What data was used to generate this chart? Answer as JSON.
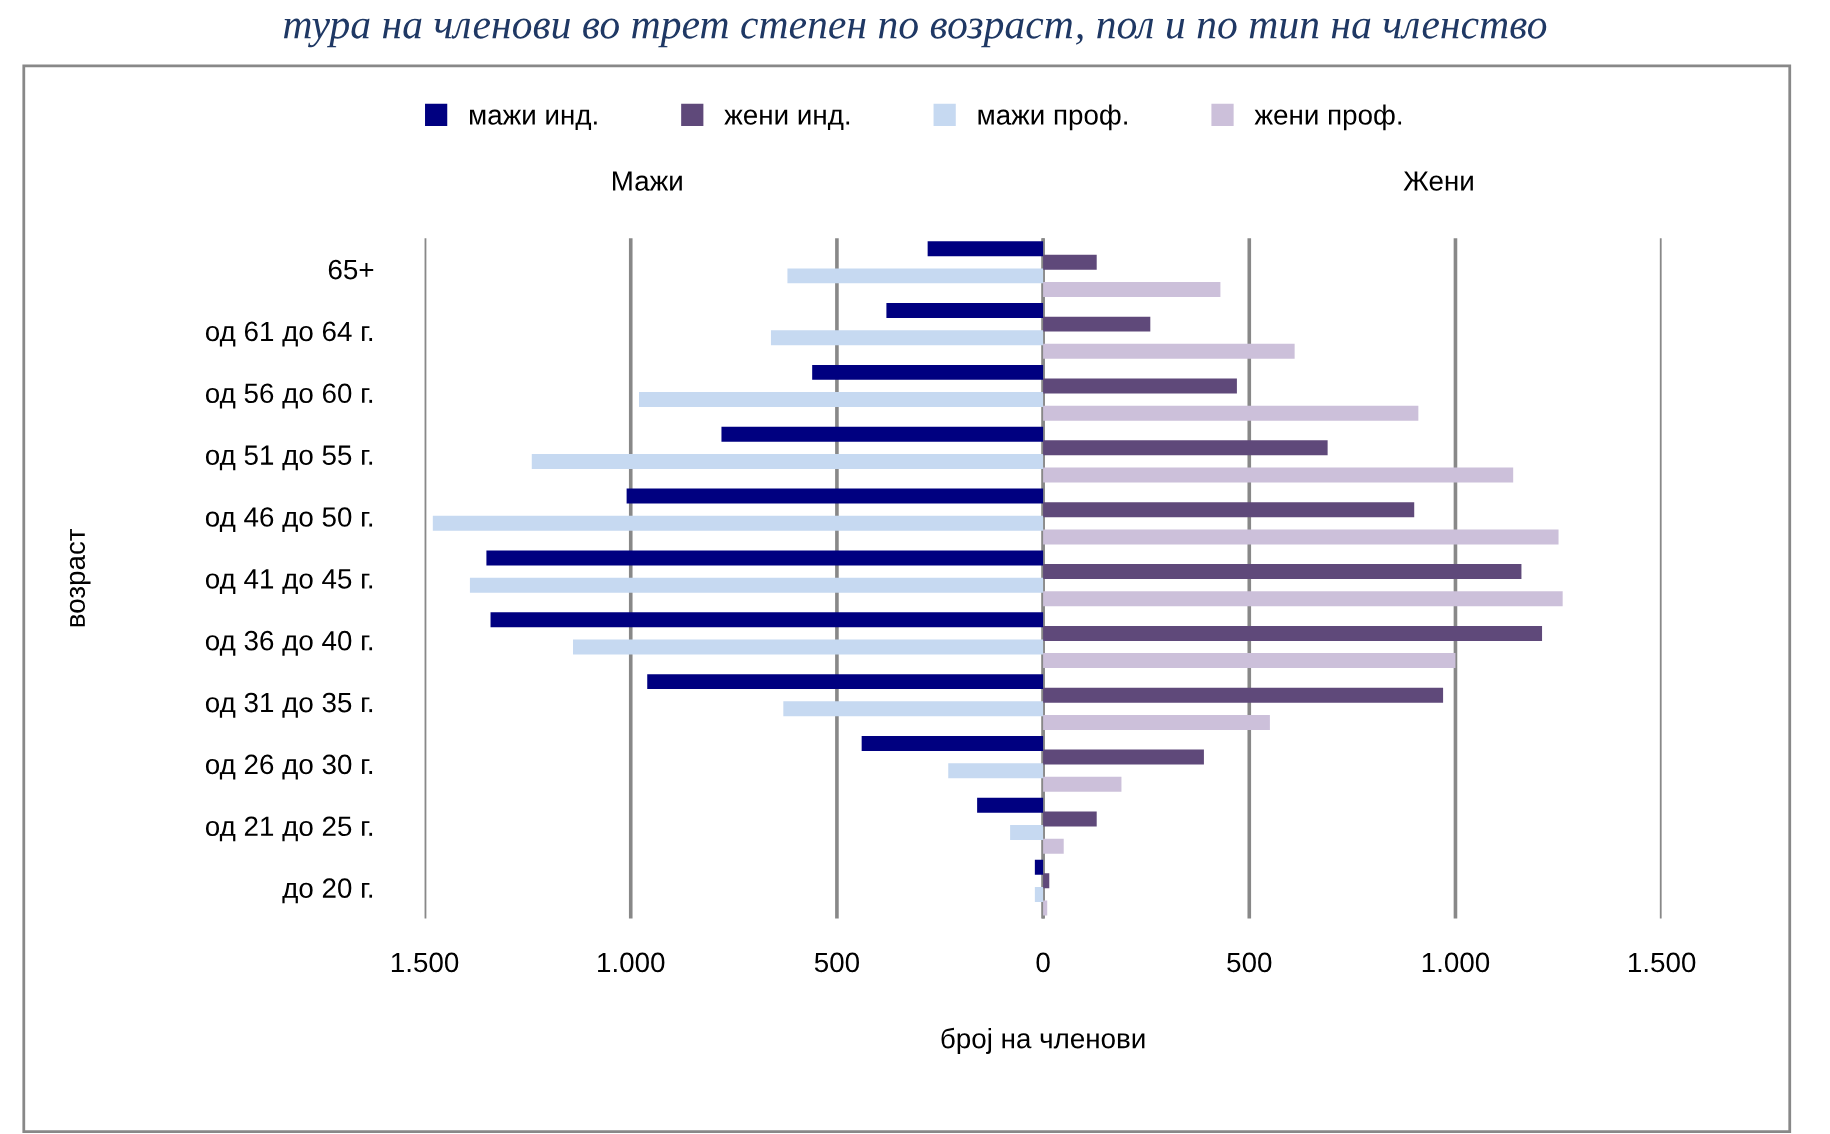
{
  "chart_data": {
    "type": "bar",
    "orientation": "horizontal",
    "title": "тура на членови во трет степен по возраст, пол и по тип на членство",
    "xlabel": "број на членови",
    "ylabel": "возраст",
    "annotations": [
      "Мажи",
      "Жени"
    ],
    "categories": [
      "65+",
      "од 61 до 64 г.",
      "од 56 до 60 г.",
      "од 51 до 55 г.",
      "од 46 до 50 г.",
      "од 41 до 45 г.",
      "од 36 до 40 г.",
      "од 31 до 35 г.",
      "од 26 до 30 г.",
      "од 21 до 25 г.",
      "до 20 г."
    ],
    "series": [
      {
        "name": "мажи инд.",
        "color": "#000080",
        "values": [
          -280,
          -380,
          -560,
          -780,
          -1010,
          -1350,
          -1340,
          -960,
          -440,
          -160,
          -20
        ]
      },
      {
        "name": "жени инд.",
        "color": "#5f497a",
        "values": [
          130,
          260,
          470,
          690,
          900,
          1160,
          1210,
          970,
          390,
          130,
          15
        ]
      },
      {
        "name": "мажи проф.",
        "color": "#c6d9f1",
        "values": [
          -620,
          -660,
          -980,
          -1240,
          -1480,
          -1390,
          -1140,
          -630,
          -230,
          -80,
          -20
        ]
      },
      {
        "name": "жени проф.",
        "color": "#ccc0da",
        "values": [
          430,
          610,
          910,
          1140,
          1250,
          1260,
          1000,
          550,
          190,
          50,
          10
        ]
      }
    ],
    "xlim": [
      -1500,
      1500
    ],
    "xticks": [
      {
        "value": -1500,
        "label": "1.500"
      },
      {
        "value": -1000,
        "label": "1.000"
      },
      {
        "value": -500,
        "label": "500"
      },
      0,
      500,
      {
        "value": 1000,
        "label": "1.000"
      },
      {
        "value": 1500,
        "label": "1.500"
      }
    ],
    "grid": "x",
    "legend": "top"
  }
}
